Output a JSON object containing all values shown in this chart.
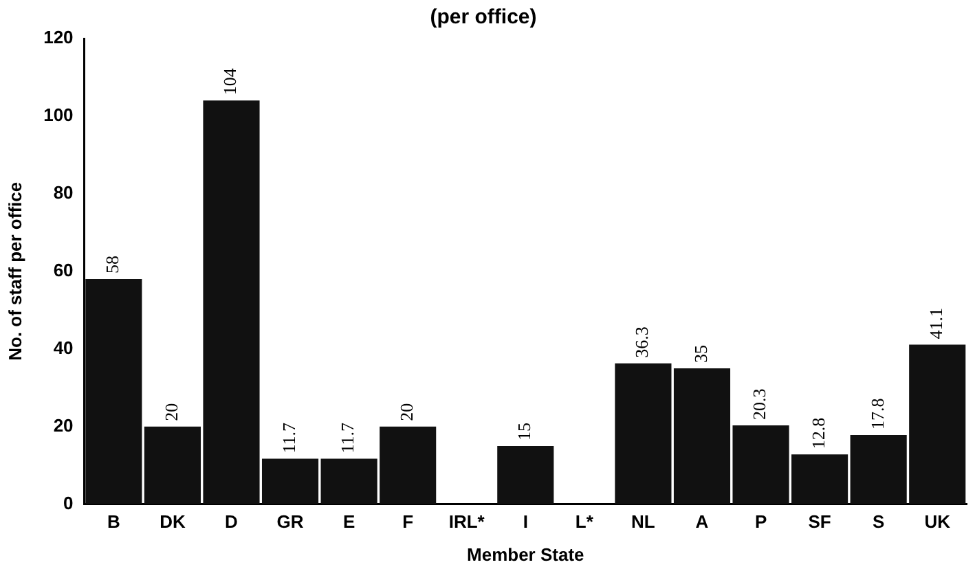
{
  "chart_data": {
    "type": "bar",
    "title": "(per office)",
    "xlabel": "Member State",
    "ylabel": "No. of staff per office",
    "categories": [
      "B",
      "DK",
      "D",
      "GR",
      "E",
      "F",
      "IRL*",
      "I",
      "L*",
      "NL",
      "A",
      "P",
      "SF",
      "S",
      "UK"
    ],
    "values": [
      58,
      20,
      104,
      11.7,
      11.7,
      20,
      null,
      15,
      null,
      36.3,
      35,
      20.3,
      12.8,
      17.8,
      41.1
    ],
    "color": "#111111",
    "ylim": [
      0,
      120
    ],
    "yticks": [
      0,
      20,
      40,
      60,
      80,
      100,
      120
    ],
    "grid": false,
    "legend": false,
    "data_labels": true
  }
}
